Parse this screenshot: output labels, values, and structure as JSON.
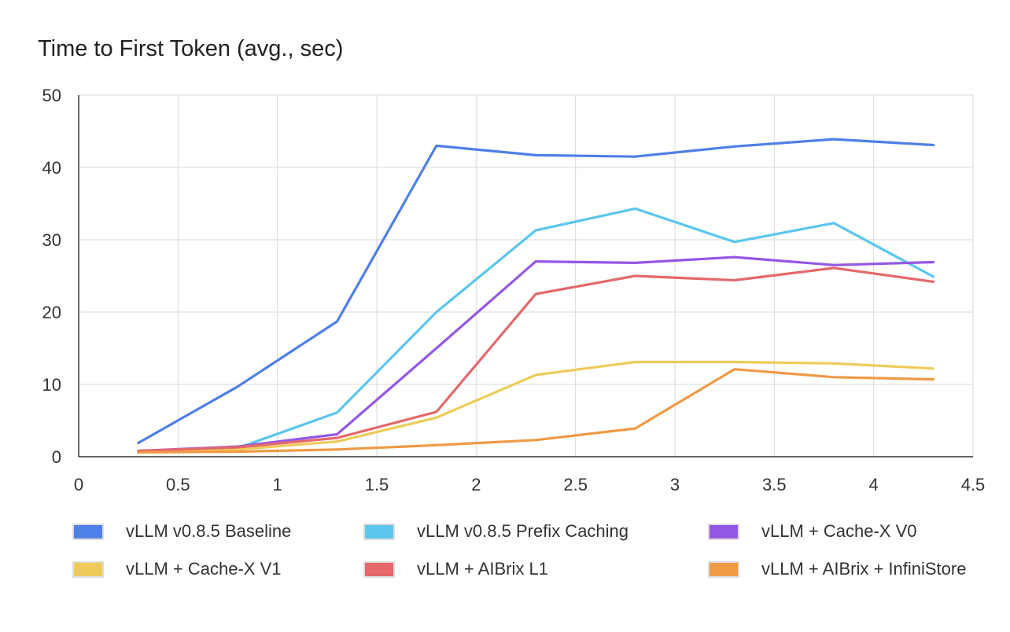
{
  "chart_data": {
    "type": "line",
    "title": "Time to First Token (avg., sec)",
    "xlabel": "",
    "ylabel": "",
    "xlim": [
      0,
      4.5
    ],
    "ylim": [
      0,
      50
    ],
    "x_ticks": [
      "0",
      "0.5",
      "1",
      "1.5",
      "2",
      "2.5",
      "3",
      "3.5",
      "4",
      "4.5"
    ],
    "y_ticks": [
      "0",
      "10",
      "20",
      "30",
      "40",
      "50"
    ],
    "grid": true,
    "legend_position": "bottom",
    "x": [
      0.3,
      0.8,
      1.3,
      1.8,
      2.3,
      2.8,
      3.3,
      3.8,
      4.3
    ],
    "series": [
      {
        "name": "vLLM v0.8.5 Baseline",
        "color": "#4f7fe8",
        "values": [
          1.9,
          9.7,
          18.7,
          43.0,
          41.7,
          41.5,
          42.9,
          43.9,
          43.1
        ]
      },
      {
        "name": "vLLM v0.8.5 Prefix Caching",
        "color": "#5bc6ee",
        "values": [
          0.8,
          1.2,
          6.1,
          20.0,
          31.3,
          34.3,
          29.7,
          32.3,
          24.9
        ]
      },
      {
        "name": "vLLM + Cache-X V0",
        "color": "#9458e6",
        "values": [
          0.8,
          1.4,
          3.1,
          15.0,
          27.0,
          26.8,
          27.6,
          26.5,
          26.9
        ]
      },
      {
        "name": "vLLM + Cache-X V1",
        "color": "#eecb58",
        "values": [
          0.6,
          1.0,
          2.1,
          5.4,
          11.3,
          13.1,
          13.1,
          12.9,
          12.2
        ]
      },
      {
        "name": "vLLM + AIBrix L1",
        "color": "#e5686a",
        "values": [
          0.8,
          1.3,
          2.6,
          6.2,
          22.5,
          25.0,
          24.4,
          26.1,
          24.2
        ]
      },
      {
        "name": "vLLM + AIBrix + InfiniStore",
        "color": "#ef9a44",
        "values": [
          0.6,
          0.7,
          1.0,
          1.6,
          2.3,
          3.9,
          12.1,
          11.0,
          10.7
        ]
      }
    ]
  }
}
